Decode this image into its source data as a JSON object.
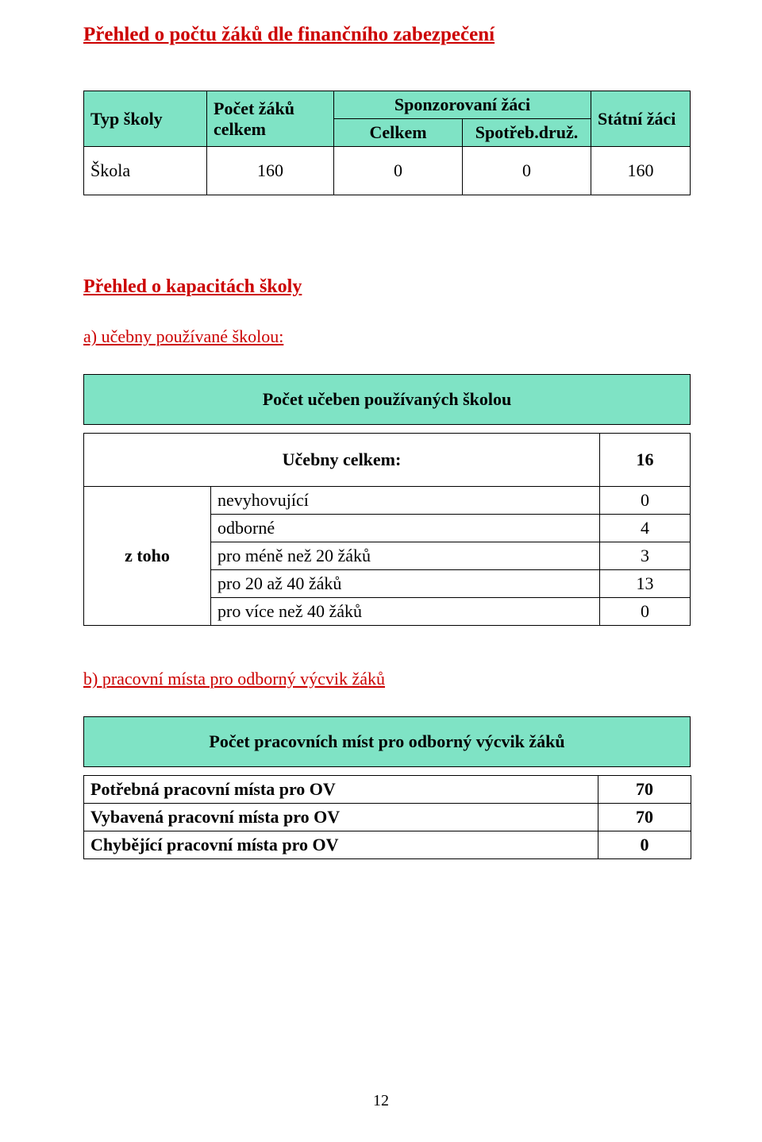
{
  "page_number": "12",
  "colors": {
    "accent": "#cc0000",
    "cell_bg": "#7fe3c5",
    "border": "#000000",
    "text": "#000000",
    "page_bg": "#ffffff"
  },
  "sec1": {
    "title": "Přehled o počtu žáků dle finančního zabezpečení",
    "header": {
      "typ_skoly": "Typ školy",
      "pocet_zaku_celkem_l1": "Počet žáků",
      "pocet_zaku_celkem_l2": "celkem",
      "sponz_l1": "Sponzorovaní žáci",
      "sponz_sub1": "Celkem",
      "sponz_sub2": "Spotřeb.druž.",
      "statni": "Státní žáci"
    },
    "row": {
      "label": "Škola",
      "celkem": "160",
      "sponz_celkem": "0",
      "sponz_druz": "0",
      "statni": "160"
    }
  },
  "sec2": {
    "title": "Přehled o kapacitách školy",
    "a_label": "a) učebny používané školou:",
    "a_table_title": "Počet učeben používaných školou",
    "a_total_label": "Učebny celkem:",
    "a_total_value": "16",
    "a_ztoho": "z toho",
    "a_rows": [
      {
        "label": "nevyhovující",
        "value": "0"
      },
      {
        "label": "odborné",
        "value": "4"
      },
      {
        "label": "pro méně než 20 žáků",
        "value": "3"
      },
      {
        "label": "pro 20 až 40 žáků",
        "value": "13"
      },
      {
        "label": "pro více než 40 žáků",
        "value": "0"
      }
    ],
    "b_label": "b) pracovní místa pro odborný výcvik žáků",
    "b_table_title": "Počet pracovních míst pro odborný výcvik žáků",
    "b_rows": [
      {
        "label": "Potřebná pracovní místa pro OV",
        "value": "70"
      },
      {
        "label": "Vybavená pracovní místa pro OV",
        "value": "70"
      },
      {
        "label": "Chybějící pracovní místa pro OV",
        "value": "0"
      }
    ]
  }
}
